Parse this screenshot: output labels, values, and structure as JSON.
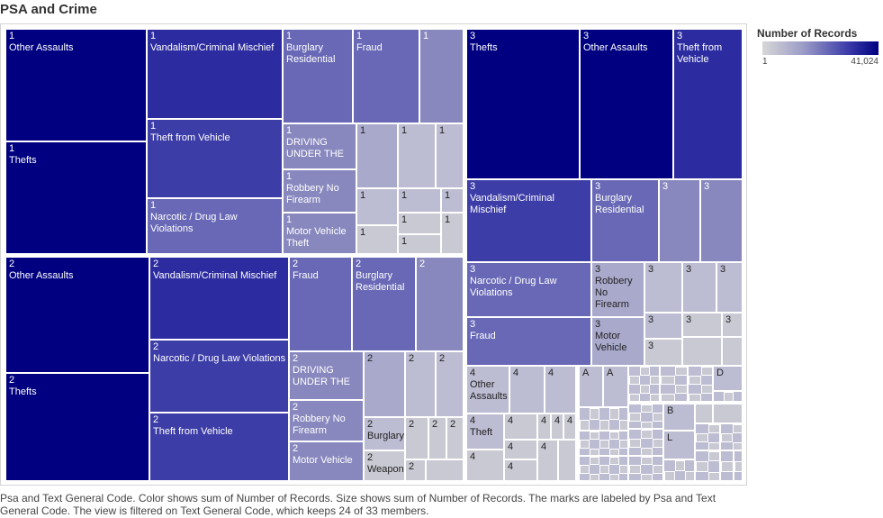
{
  "title": "PSA and Crime",
  "legend": {
    "title": "Number of Records",
    "min_label": "1",
    "max_label": "41,024"
  },
  "caption": "Psa and Text General Code.  Color shows sum of Number of Records.  Size shows sum of Number of Records.  The marks are labeled by Psa and Text General Code. The view is filtered on Text General Code, which keeps 24 of 33 members.",
  "chart_data": {
    "type": "treemap",
    "size_measure": "Number of Records",
    "color_measure": "Number of Records",
    "color_range": [
      1,
      41024
    ],
    "groups": [
      {
        "psa": "1",
        "items": [
          {
            "label": "Other Assaults"
          },
          {
            "label": "Thefts"
          },
          {
            "label": "Vandalism/Criminal Mischief"
          },
          {
            "label": "Theft from Vehicle"
          },
          {
            "label": "Narcotic / Drug Law Violations"
          },
          {
            "label": "Burglary Residential"
          },
          {
            "label": "Fraud"
          },
          {
            "label": ""
          },
          {
            "label": "DRIVING UNDER THE"
          },
          {
            "label": "Robbery No Firearm"
          },
          {
            "label": "Motor Vehicle Theft"
          }
        ]
      },
      {
        "psa": "2",
        "items": [
          {
            "label": "Other Assaults"
          },
          {
            "label": "Thefts"
          },
          {
            "label": "Vandalism/Criminal Mischief"
          },
          {
            "label": "Narcotic / Drug Law Violations"
          },
          {
            "label": "Theft from Vehicle"
          },
          {
            "label": "Fraud"
          },
          {
            "label": "Burglary Residential"
          },
          {
            "label": ""
          },
          {
            "label": "DRIVING UNDER THE"
          },
          {
            "label": "Robbery No Firearm"
          },
          {
            "label": "Motor Vehicle"
          },
          {
            "label": "Burglary"
          },
          {
            "label": "Weapon"
          }
        ]
      },
      {
        "psa": "3",
        "items": [
          {
            "label": "Thefts"
          },
          {
            "label": "Other Assaults"
          },
          {
            "label": "Theft from Vehicle"
          },
          {
            "label": "Vandalism/Criminal Mischief"
          },
          {
            "label": "Burglary Residential"
          },
          {
            "label": "Narcotic / Drug Law Violations"
          },
          {
            "label": "Robbery No Firearm"
          },
          {
            "label": "Fraud"
          },
          {
            "label": "Motor Vehicle"
          }
        ]
      },
      {
        "psa": "4",
        "items": [
          {
            "label": "Other Assaults"
          },
          {
            "label": "Theft"
          }
        ]
      },
      {
        "psa": "A",
        "items": []
      },
      {
        "psa": "B",
        "items": []
      },
      {
        "psa": "D",
        "items": []
      },
      {
        "psa": "L",
        "items": []
      }
    ]
  }
}
